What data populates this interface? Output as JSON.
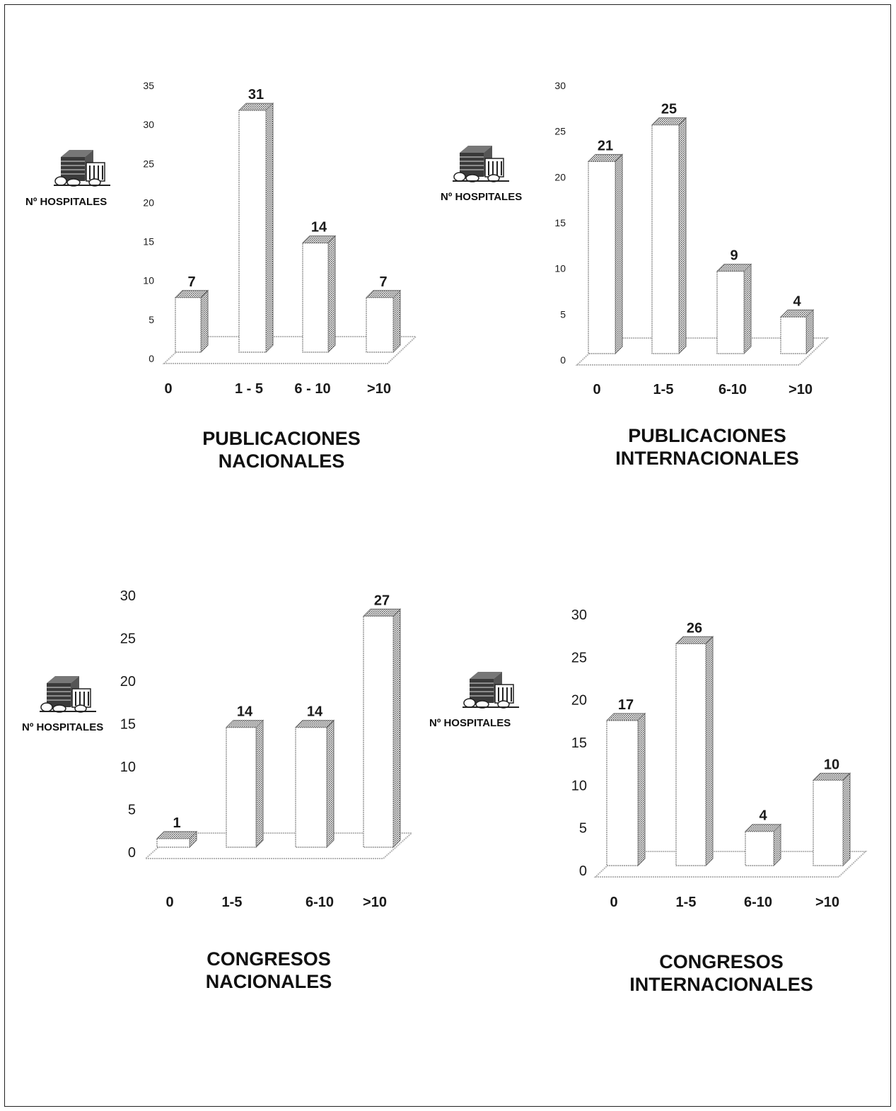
{
  "icon_name": "hospital-building-icon",
  "colors": {
    "ink": "#1a1a1a",
    "bar_face": "#ffffff",
    "bar_shade": "#9a9a9a",
    "floor": "#b5b5b5"
  },
  "chart_data": [
    {
      "type": "bar",
      "title": "PUBLICACIONES\nNACIONALES",
      "ylabel": "Nº HOSPITALES",
      "xlabel": "",
      "categories": [
        "0",
        "1 - 5",
        "6 - 10",
        ">10"
      ],
      "values": [
        7,
        31,
        14,
        7
      ],
      "ylim": [
        0,
        35
      ],
      "yticks": [
        "0",
        "5",
        "10",
        "15",
        "20",
        "25",
        "30",
        "35"
      ],
      "grid": false,
      "legend": "none"
    },
    {
      "type": "bar",
      "title": "PUBLICACIONES\nINTERNACIONALES",
      "ylabel": "Nº HOSPITALES",
      "xlabel": "",
      "categories": [
        "0",
        "1-5",
        "6-10",
        ">10"
      ],
      "values": [
        21,
        25,
        9,
        4
      ],
      "ylim": [
        0,
        30
      ],
      "yticks": [
        "0",
        "5",
        "10",
        "15",
        "20",
        "25",
        "30"
      ],
      "grid": false,
      "legend": "none"
    },
    {
      "type": "bar",
      "title": "CONGRESOS\nNACIONALES",
      "ylabel": "Nº HOSPITALES",
      "xlabel": "",
      "categories": [
        "0",
        "1-5",
        "6-10",
        ">10"
      ],
      "values": [
        1,
        14,
        14,
        27
      ],
      "ylim": [
        0,
        30
      ],
      "yticks": [
        "0",
        "5",
        "10",
        "15",
        "20",
        "25",
        "30"
      ],
      "grid": false,
      "legend": "none"
    },
    {
      "type": "bar",
      "title": "CONGRESOS\nINTERNACIONALES",
      "ylabel": "Nº HOSPITALES",
      "xlabel": "",
      "categories": [
        "0",
        "1-5",
        "6-10",
        ">10"
      ],
      "values": [
        17,
        26,
        4,
        10
      ],
      "ylim": [
        0,
        30
      ],
      "yticks": [
        "0",
        "5",
        "10",
        "15",
        "20",
        "25",
        "30"
      ],
      "grid": false,
      "legend": "none"
    }
  ]
}
